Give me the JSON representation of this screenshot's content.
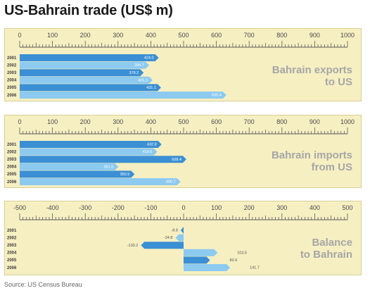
{
  "title": "US-Bahrain trade (US$ m)",
  "source": "Source: US Census Bureau",
  "colors": {
    "panel_bg": "#f6efc2",
    "bar_dark": "#3b8fd4",
    "bar_light": "#8ccaf0"
  },
  "chart_data": [
    {
      "type": "bar",
      "orientation": "horizontal",
      "title_lines": [
        "Bahrain exports",
        "to US"
      ],
      "categories": [
        "2001",
        "2002",
        "2003",
        "2004",
        "2005",
        "2006"
      ],
      "values": [
        424.0,
        394.7,
        378.2,
        405.3,
        431.1,
        630.4
      ],
      "value_labels": [
        "424.0",
        "394.7",
        "378.2",
        "405.3",
        "431.1",
        "630.4"
      ],
      "xlim": [
        0,
        1000
      ],
      "tick_labels": [
        "0",
        "100",
        "200",
        "300",
        "400",
        "500",
        "600",
        "700",
        "800",
        "900",
        "1000"
      ]
    },
    {
      "type": "bar",
      "orientation": "horizontal",
      "title_lines": [
        "Bahrain imports",
        "from US"
      ],
      "categories": [
        "2001",
        "2002",
        "2003",
        "2004",
        "2005",
        "2006"
      ],
      "values": [
        432.8,
        419.5,
        508.4,
        301.0,
        350.5,
        490.7
      ],
      "value_labels": [
        "432.8",
        "419.5",
        "508.4",
        "301.0",
        "350.5",
        "490.7"
      ],
      "xlim": [
        0,
        1000
      ],
      "tick_labels": [
        "0",
        "100",
        "200",
        "300",
        "400",
        "500",
        "600",
        "700",
        "800",
        "900",
        "1000"
      ]
    },
    {
      "type": "bar",
      "orientation": "horizontal",
      "title_lines": [
        "Balance",
        "to Bahrain"
      ],
      "categories": [
        "2001",
        "2002",
        "2003",
        "2004",
        "2005",
        "2006"
      ],
      "values": [
        -8.8,
        -24.8,
        -130.2,
        103.5,
        80.6,
        141.7
      ],
      "value_labels": [
        "-8.8",
        "-24.8",
        "-130.2",
        "103.5",
        "80.6",
        "141.7"
      ],
      "xlim": [
        -500,
        500
      ],
      "tick_labels": [
        "-500",
        "-400",
        "-300",
        "-200",
        "-100",
        "0",
        "100",
        "200",
        "300",
        "400",
        "500"
      ]
    }
  ]
}
